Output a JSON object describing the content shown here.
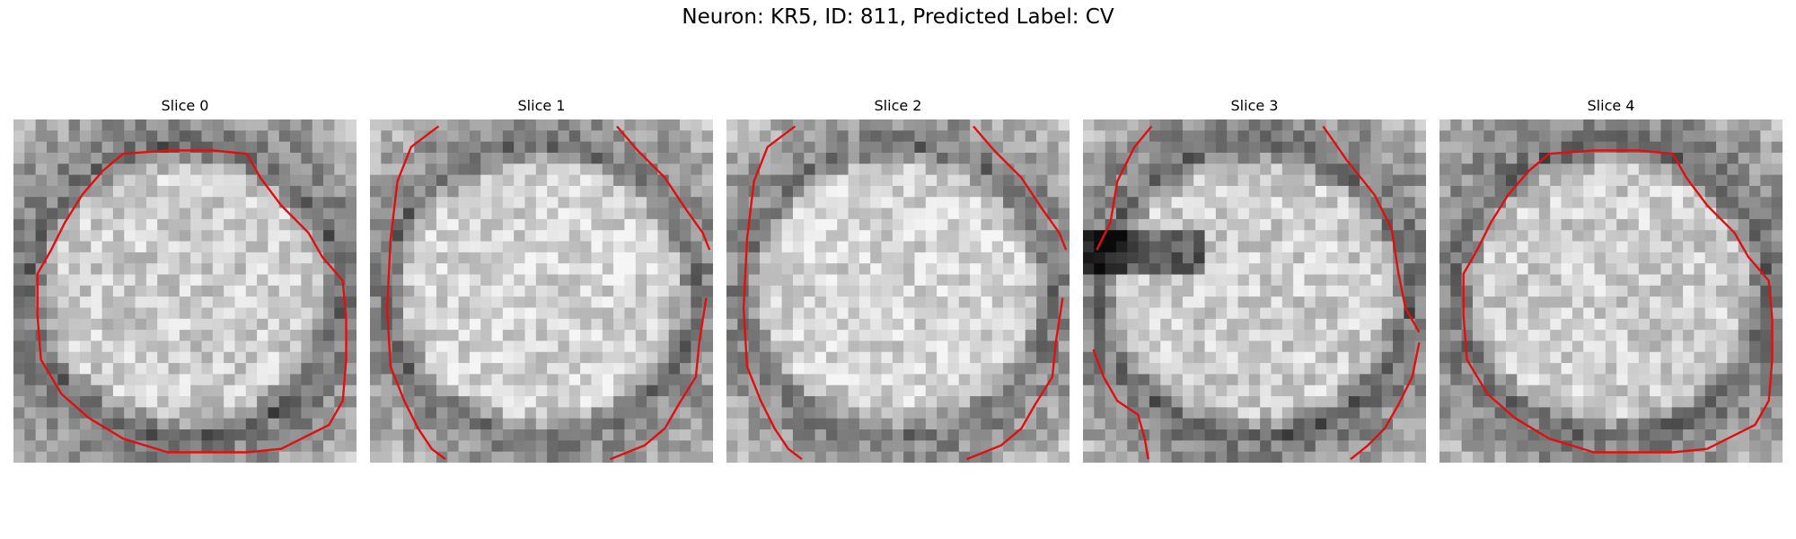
{
  "figure": {
    "title": "Neuron: KR5, ID: 811, Predicted Label: CV",
    "contour_color": "#e01010",
    "panels": [
      {
        "title": "Slice 0",
        "pattern": "full"
      },
      {
        "title": "Slice 1",
        "pattern": "sides"
      },
      {
        "title": "Slice 2",
        "pattern": "sides"
      },
      {
        "title": "Slice 3",
        "pattern": "sides-dark-left"
      },
      {
        "title": "Slice 4",
        "pattern": "full"
      }
    ]
  }
}
